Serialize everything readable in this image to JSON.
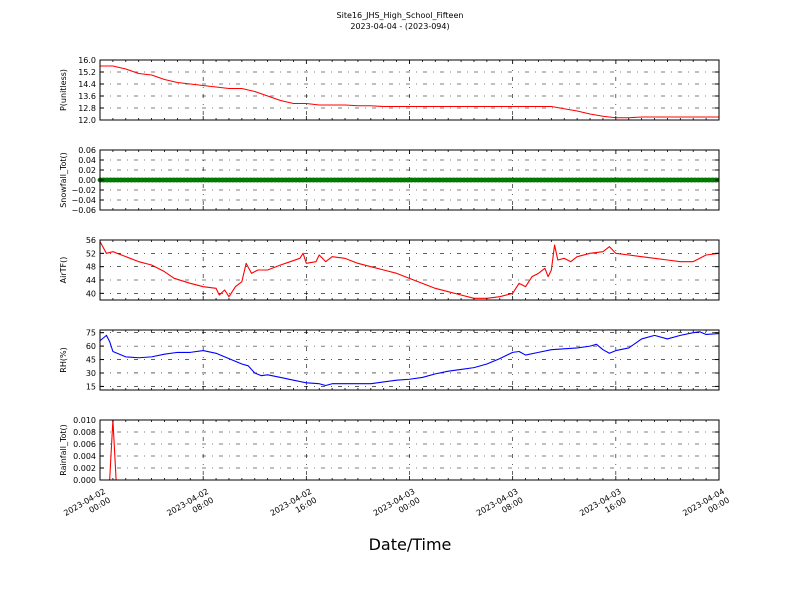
{
  "figure": {
    "title": "Site16_JHS_High_School_Fifteen",
    "subtitle": "2023-04-04 - (2023-094)",
    "xlabel": "Date/Time"
  },
  "chart_data": {
    "type": "line",
    "x_axis": {
      "range": [
        "2023-04-02 00:00",
        "2023-04-04 00:00"
      ],
      "ticks": [
        {
          "value": "2023-04-02 00:00",
          "label_line1": "2023-04-02",
          "label_line2": "00:00"
        },
        {
          "value": "2023-04-02 08:00",
          "label_line1": "2023-04-02",
          "label_line2": "08:00"
        },
        {
          "value": "2023-04-02 16:00",
          "label_line1": "2023-04-02",
          "label_line2": "16:00"
        },
        {
          "value": "2023-04-03 00:00",
          "label_line1": "2023-04-03",
          "label_line2": "00:00"
        },
        {
          "value": "2023-04-03 08:00",
          "label_line1": "2023-04-03",
          "label_line2": "08:00"
        },
        {
          "value": "2023-04-03 16:00",
          "label_line1": "2023-04-03",
          "label_line2": "16:00"
        },
        {
          "value": "2023-04-04 00:00",
          "label_line1": "2023-04-04",
          "label_line2": "00:00"
        }
      ]
    },
    "grid": true,
    "panels": [
      {
        "ylabel": "P(unitless)",
        "ylim": [
          12.0,
          16.0
        ],
        "yticks": [
          "12.0",
          "12.8",
          "13.6",
          "14.4",
          "15.2",
          "16.0"
        ],
        "series": [
          {
            "color": "#ff0000",
            "points": [
              [
                "2023-04-02 00:00",
                15.6
              ],
              [
                "2023-04-02 01:00",
                15.6
              ],
              [
                "2023-04-02 02:00",
                15.4
              ],
              [
                "2023-04-02 03:00",
                15.1
              ],
              [
                "2023-04-02 04:00",
                15.0
              ],
              [
                "2023-04-02 05:00",
                14.7
              ],
              [
                "2023-04-02 06:00",
                14.5
              ],
              [
                "2023-04-02 07:00",
                14.4
              ],
              [
                "2023-04-02 08:00",
                14.3
              ],
              [
                "2023-04-02 09:00",
                14.2
              ],
              [
                "2023-04-02 10:00",
                14.1
              ],
              [
                "2023-04-02 11:00",
                14.1
              ],
              [
                "2023-04-02 12:00",
                13.9
              ],
              [
                "2023-04-02 13:00",
                13.6
              ],
              [
                "2023-04-02 14:00",
                13.3
              ],
              [
                "2023-04-02 15:00",
                13.1
              ],
              [
                "2023-04-02 16:00",
                13.1
              ],
              [
                "2023-04-02 17:00",
                13.0
              ],
              [
                "2023-04-02 18:00",
                13.0
              ],
              [
                "2023-04-02 19:00",
                13.0
              ],
              [
                "2023-04-02 20:00",
                12.95
              ],
              [
                "2023-04-02 21:00",
                12.95
              ],
              [
                "2023-04-02 22:00",
                12.9
              ],
              [
                "2023-04-02 23:00",
                12.9
              ],
              [
                "2023-04-03 00:00",
                12.9
              ],
              [
                "2023-04-03 02:00",
                12.9
              ],
              [
                "2023-04-03 04:00",
                12.9
              ],
              [
                "2023-04-03 06:00",
                12.9
              ],
              [
                "2023-04-03 08:00",
                12.9
              ],
              [
                "2023-04-03 10:00",
                12.9
              ],
              [
                "2023-04-03 11:00",
                12.9
              ],
              [
                "2023-04-03 12:00",
                12.75
              ],
              [
                "2023-04-03 13:00",
                12.6
              ],
              [
                "2023-04-03 14:00",
                12.4
              ],
              [
                "2023-04-03 15:00",
                12.25
              ],
              [
                "2023-04-03 16:00",
                12.15
              ],
              [
                "2023-04-03 17:00",
                12.15
              ],
              [
                "2023-04-03 18:00",
                12.2
              ],
              [
                "2023-04-03 20:00",
                12.2
              ],
              [
                "2023-04-03 22:00",
                12.2
              ],
              [
                "2023-04-04 00:00",
                12.2
              ]
            ]
          }
        ]
      },
      {
        "ylabel": "Snowfall_Tot()",
        "ylim": [
          -0.06,
          0.06
        ],
        "yticks": [
          "−0.06",
          "−0.04",
          "−0.02",
          "0.00",
          "0.02",
          "0.04",
          "0.06"
        ],
        "series": [
          {
            "color": "#008000",
            "marker": "dots",
            "points": [
              [
                "2023-04-02 00:00",
                0.0
              ],
              [
                "2023-04-04 00:00",
                0.0
              ]
            ]
          }
        ]
      },
      {
        "ylabel": "AirTF()",
        "ylim": [
          38,
          56
        ],
        "yticks": [
          "40",
          "44",
          "48",
          "52",
          "56"
        ],
        "series": [
          {
            "color": "#ff0000",
            "points": [
              [
                "2023-04-02 00:00",
                55.5
              ],
              [
                "2023-04-02 00:30",
                52
              ],
              [
                "2023-04-02 01:00",
                52.5
              ],
              [
                "2023-04-02 02:00",
                51
              ],
              [
                "2023-04-02 03:00",
                49.5
              ],
              [
                "2023-04-02 04:00",
                48.5
              ],
              [
                "2023-04-02 05:00",
                46.5
              ],
              [
                "2023-04-02 05:45",
                44.5
              ],
              [
                "2023-04-02 07:00",
                43
              ],
              [
                "2023-04-02 08:00",
                42
              ],
              [
                "2023-04-02 09:00",
                41.5
              ],
              [
                "2023-04-02 09:15",
                39.5
              ],
              [
                "2023-04-02 09:40",
                41
              ],
              [
                "2023-04-02 10:00",
                39
              ],
              [
                "2023-04-02 10:30",
                42
              ],
              [
                "2023-04-02 11:00",
                43.5
              ],
              [
                "2023-04-02 11:20",
                49
              ],
              [
                "2023-04-02 11:45",
                46
              ],
              [
                "2023-04-02 12:15",
                47
              ],
              [
                "2023-04-02 13:00",
                47
              ],
              [
                "2023-04-02 14:00",
                48.5
              ],
              [
                "2023-04-02 14:45",
                49.5
              ],
              [
                "2023-04-02 15:30",
                50.5
              ],
              [
                "2023-04-02 15:45",
                52
              ],
              [
                "2023-04-02 16:00",
                49
              ],
              [
                "2023-04-02 16:45",
                49.5
              ],
              [
                "2023-04-02 17:00",
                51.5
              ],
              [
                "2023-04-02 17:30",
                49.5
              ],
              [
                "2023-04-02 18:00",
                51
              ],
              [
                "2023-04-02 19:00",
                50.5
              ],
              [
                "2023-04-02 20:00",
                49
              ],
              [
                "2023-04-02 21:00",
                48
              ],
              [
                "2023-04-02 22:00",
                47
              ],
              [
                "2023-04-02 23:00",
                46
              ],
              [
                "2023-04-03 00:00",
                44.5
              ],
              [
                "2023-04-03 01:00",
                43
              ],
              [
                "2023-04-03 02:00",
                41.5
              ],
              [
                "2023-04-03 03:00",
                40.5
              ],
              [
                "2023-04-03 04:00",
                39.5
              ],
              [
                "2023-04-03 05:00",
                38.5
              ],
              [
                "2023-04-03 06:00",
                38.5
              ],
              [
                "2023-04-03 07:00",
                39
              ],
              [
                "2023-04-03 08:00",
                40
              ],
              [
                "2023-04-03 08:30",
                43
              ],
              [
                "2023-04-03 09:00",
                42
              ],
              [
                "2023-04-03 09:30",
                45
              ],
              [
                "2023-04-03 10:00",
                46
              ],
              [
                "2023-04-03 10:30",
                47.5
              ],
              [
                "2023-04-03 10:45",
                45
              ],
              [
                "2023-04-03 11:00",
                47
              ],
              [
                "2023-04-03 11:15",
                54.5
              ],
              [
                "2023-04-03 11:30",
                50
              ],
              [
                "2023-04-03 12:00",
                50.5
              ],
              [
                "2023-04-03 12:30",
                49.5
              ],
              [
                "2023-04-03 13:00",
                51
              ],
              [
                "2023-04-03 14:00",
                52
              ],
              [
                "2023-04-03 15:00",
                52.5
              ],
              [
                "2023-04-03 15:30",
                54
              ],
              [
                "2023-04-03 16:00",
                52
              ],
              [
                "2023-04-03 17:00",
                51.5
              ],
              [
                "2023-04-03 18:00",
                51
              ],
              [
                "2023-04-03 19:00",
                50.5
              ],
              [
                "2023-04-03 20:00",
                50
              ],
              [
                "2023-04-03 21:00",
                49.5
              ],
              [
                "2023-04-03 22:00",
                49.5
              ],
              [
                "2023-04-03 23:00",
                51.5
              ],
              [
                "2023-04-04 00:00",
                52
              ]
            ]
          }
        ]
      },
      {
        "ylabel": "RH(%)",
        "ylim": [
          11,
          78
        ],
        "yticks": [
          "15",
          "30",
          "45",
          "60",
          "75"
        ],
        "series": [
          {
            "color": "#0000ff",
            "points": [
              [
                "2023-04-02 00:00",
                66
              ],
              [
                "2023-04-02 00:30",
                72
              ],
              [
                "2023-04-02 00:45",
                65
              ],
              [
                "2023-04-02 01:00",
                54
              ],
              [
                "2023-04-02 02:00",
                48
              ],
              [
                "2023-04-02 03:00",
                47
              ],
              [
                "2023-04-02 04:00",
                48
              ],
              [
                "2023-04-02 05:00",
                51
              ],
              [
                "2023-04-02 06:00",
                53
              ],
              [
                "2023-04-02 07:00",
                53
              ],
              [
                "2023-04-02 08:00",
                55
              ],
              [
                "2023-04-02 09:00",
                52
              ],
              [
                "2023-04-02 10:00",
                46
              ],
              [
                "2023-04-02 11:00",
                40
              ],
              [
                "2023-04-02 11:30",
                38
              ],
              [
                "2023-04-02 12:00",
                30
              ],
              [
                "2023-04-02 12:30",
                27
              ],
              [
                "2023-04-02 13:00",
                28
              ],
              [
                "2023-04-02 14:00",
                25
              ],
              [
                "2023-04-02 15:00",
                22
              ],
              [
                "2023-04-02 16:00",
                19
              ],
              [
                "2023-04-02 17:00",
                18
              ],
              [
                "2023-04-02 17:30",
                16
              ],
              [
                "2023-04-02 18:00",
                18
              ],
              [
                "2023-04-02 19:00",
                18
              ],
              [
                "2023-04-02 20:00",
                18
              ],
              [
                "2023-04-02 21:00",
                18
              ],
              [
                "2023-04-02 22:00",
                20
              ],
              [
                "2023-04-02 23:00",
                22
              ],
              [
                "2023-04-03 00:00",
                23
              ],
              [
                "2023-04-03 01:00",
                25
              ],
              [
                "2023-04-03 02:00",
                29
              ],
              [
                "2023-04-03 03:00",
                32
              ],
              [
                "2023-04-03 04:00",
                34
              ],
              [
                "2023-04-03 05:00",
                36
              ],
              [
                "2023-04-03 06:00",
                40
              ],
              [
                "2023-04-03 07:00",
                46
              ],
              [
                "2023-04-03 08:00",
                53
              ],
              [
                "2023-04-03 08:30",
                54
              ],
              [
                "2023-04-03 09:00",
                50
              ],
              [
                "2023-04-03 10:00",
                53
              ],
              [
                "2023-04-03 11:00",
                56
              ],
              [
                "2023-04-03 12:00",
                57
              ],
              [
                "2023-04-03 13:00",
                58
              ],
              [
                "2023-04-03 14:00",
                60
              ],
              [
                "2023-04-03 14:30",
                62
              ],
              [
                "2023-04-03 15:00",
                56
              ],
              [
                "2023-04-03 15:30",
                52
              ],
              [
                "2023-04-03 16:00",
                55
              ],
              [
                "2023-04-03 17:00",
                58
              ],
              [
                "2023-04-03 18:00",
                68
              ],
              [
                "2023-04-03 19:00",
                72
              ],
              [
                "2023-04-03 20:00",
                68
              ],
              [
                "2023-04-03 21:00",
                72
              ],
              [
                "2023-04-03 22:00",
                75
              ],
              [
                "2023-04-03 22:30",
                76
              ],
              [
                "2023-04-03 23:00",
                73
              ],
              [
                "2023-04-04 00:00",
                74
              ]
            ]
          }
        ]
      },
      {
        "ylabel": "Rainfall_Tot()",
        "ylim": [
          0.0,
          0.01
        ],
        "yticks": [
          "0.000",
          "0.002",
          "0.004",
          "0.006",
          "0.008",
          "0.010"
        ],
        "series": [
          {
            "color": "#ff0000",
            "points": [
              [
                "2023-04-02 00:00",
                0.0
              ],
              [
                "2023-04-02 00:45",
                0.0
              ],
              [
                "2023-04-02 01:00",
                0.01
              ],
              [
                "2023-04-02 01:15",
                0.0
              ],
              [
                "2023-04-04 00:00",
                0.0
              ]
            ]
          }
        ]
      }
    ]
  }
}
